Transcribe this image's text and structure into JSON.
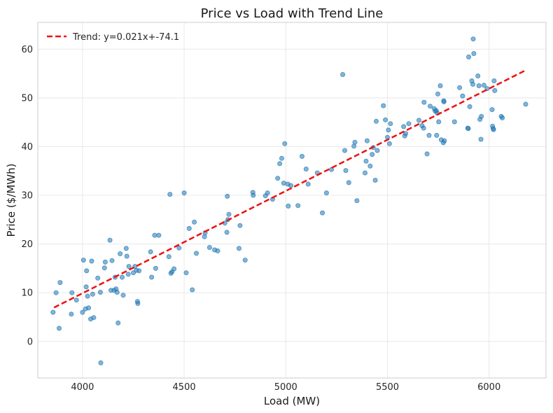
{
  "chart_data": {
    "type": "scatter",
    "title": "Price vs Load with Trend Line",
    "xlabel": "Load (MW)",
    "ylabel": "Price ($/MWh)",
    "xlim": [
      3780,
      6280
    ],
    "ylim": [
      -7.5,
      65.5
    ],
    "xticks": [
      4000,
      4500,
      5000,
      5500,
      6000
    ],
    "yticks": [
      0,
      10,
      20,
      30,
      40,
      50,
      60
    ],
    "grid": true,
    "legend_position": "top-left",
    "colors": {
      "points": "#1f77b4",
      "trend": "#ee1111",
      "grid": "#e8e8e8",
      "frame": "#cccccc"
    },
    "trend": {
      "label": "Trend: y=0.021x+-74.1",
      "slope": 0.021,
      "intercept": -74.1,
      "x_range": [
        3860,
        6180
      ]
    },
    "series": [
      {
        "values": [
          [
            3855,
            6.0
          ],
          [
            3870,
            10.0
          ],
          [
            3885,
            2.7
          ],
          [
            3890,
            12.1
          ],
          [
            3945,
            5.6
          ],
          [
            3948,
            10.0
          ],
          [
            3970,
            8.5
          ],
          [
            4000,
            6.0
          ],
          [
            4005,
            16.7
          ],
          [
            4015,
            6.7
          ],
          [
            4018,
            11.2
          ],
          [
            4020,
            14.5
          ],
          [
            4025,
            9.3
          ],
          [
            4030,
            6.9
          ],
          [
            4040,
            4.6
          ],
          [
            4045,
            16.5
          ],
          [
            4050,
            9.7
          ],
          [
            4055,
            4.9
          ],
          [
            4075,
            13.0
          ],
          [
            4088,
            10.1
          ],
          [
            4090,
            -4.4
          ],
          [
            4108,
            15.1
          ],
          [
            4112,
            16.3
          ],
          [
            4135,
            20.8
          ],
          [
            4140,
            10.5
          ],
          [
            4145,
            16.6
          ],
          [
            4155,
            10.5
          ],
          [
            4160,
            13.2
          ],
          [
            4165,
            10.8
          ],
          [
            4170,
            10.1
          ],
          [
            4175,
            3.8
          ],
          [
            4185,
            18.0
          ],
          [
            4195,
            13.2
          ],
          [
            4200,
            9.5
          ],
          [
            4215,
            19.1
          ],
          [
            4218,
            17.5
          ],
          [
            4225,
            13.8
          ],
          [
            4228,
            15.4
          ],
          [
            4250,
            14.1
          ],
          [
            4258,
            15.4
          ],
          [
            4265,
            14.6
          ],
          [
            4270,
            8.2
          ],
          [
            4272,
            7.8
          ],
          [
            4278,
            14.5
          ],
          [
            4335,
            18.4
          ],
          [
            4340,
            13.2
          ],
          [
            4355,
            21.8
          ],
          [
            4360,
            15.0
          ],
          [
            4375,
            21.8
          ],
          [
            4425,
            17.4
          ],
          [
            4430,
            30.2
          ],
          [
            4435,
            14.0
          ],
          [
            4440,
            14.3
          ],
          [
            4450,
            14.9
          ],
          [
            4475,
            19.2
          ],
          [
            4500,
            30.5
          ],
          [
            4510,
            14.1
          ],
          [
            4525,
            23.2
          ],
          [
            4540,
            10.6
          ],
          [
            4550,
            24.5
          ],
          [
            4560,
            18.1
          ],
          [
            4600,
            21.5
          ],
          [
            4603,
            22.3
          ],
          [
            4625,
            19.3
          ],
          [
            4650,
            18.8
          ],
          [
            4665,
            18.6
          ],
          [
            4700,
            24.3
          ],
          [
            4710,
            22.4
          ],
          [
            4712,
            29.8
          ],
          [
            4715,
            25.0
          ],
          [
            4720,
            26.1
          ],
          [
            4770,
            19.1
          ],
          [
            4775,
            23.8
          ],
          [
            4800,
            16.7
          ],
          [
            4838,
            30.6
          ],
          [
            4840,
            30.0
          ],
          [
            4900,
            29.9
          ],
          [
            4910,
            30.5
          ],
          [
            4935,
            29.2
          ],
          [
            4960,
            33.5
          ],
          [
            4970,
            36.5
          ],
          [
            4980,
            37.6
          ],
          [
            4990,
            32.5
          ],
          [
            4995,
            40.6
          ],
          [
            5010,
            32.3
          ],
          [
            5012,
            27.8
          ],
          [
            5025,
            32.0
          ],
          [
            5060,
            27.9
          ],
          [
            5080,
            38.0
          ],
          [
            5100,
            35.4
          ],
          [
            5110,
            32.3
          ],
          [
            5155,
            34.6
          ],
          [
            5180,
            26.4
          ],
          [
            5200,
            30.5
          ],
          [
            5225,
            35.3
          ],
          [
            5280,
            54.8
          ],
          [
            5290,
            39.2
          ],
          [
            5295,
            35.1
          ],
          [
            5310,
            32.6
          ],
          [
            5335,
            40.1
          ],
          [
            5340,
            40.9
          ],
          [
            5350,
            28.9
          ],
          [
            5390,
            34.6
          ],
          [
            5395,
            37.0
          ],
          [
            5400,
            41.2
          ],
          [
            5415,
            36.0
          ],
          [
            5425,
            38.4
          ],
          [
            5430,
            39.8
          ],
          [
            5440,
            33.1
          ],
          [
            5445,
            45.2
          ],
          [
            5450,
            39.2
          ],
          [
            5480,
            48.4
          ],
          [
            5490,
            45.5
          ],
          [
            5500,
            41.9
          ],
          [
            5505,
            43.4
          ],
          [
            5510,
            40.6
          ],
          [
            5515,
            44.7
          ],
          [
            5580,
            44.1
          ],
          [
            5585,
            42.2
          ],
          [
            5590,
            42.7
          ],
          [
            5605,
            44.7
          ],
          [
            5655,
            45.4
          ],
          [
            5670,
            44.3
          ],
          [
            5678,
            43.8
          ],
          [
            5680,
            49.1
          ],
          [
            5695,
            38.5
          ],
          [
            5705,
            42.3
          ],
          [
            5710,
            48.3
          ],
          [
            5730,
            47.8
          ],
          [
            5735,
            47.3
          ],
          [
            5740,
            47.4
          ],
          [
            5742,
            42.3
          ],
          [
            5745,
            46.9
          ],
          [
            5748,
            50.8
          ],
          [
            5752,
            45.1
          ],
          [
            5760,
            52.5
          ],
          [
            5765,
            41.4
          ],
          [
            5775,
            40.8
          ],
          [
            5777,
            49.4
          ],
          [
            5778,
            49.2
          ],
          [
            5780,
            41.2
          ],
          [
            5830,
            45.1
          ],
          [
            5855,
            52.1
          ],
          [
            5870,
            50.4
          ],
          [
            5895,
            43.8
          ],
          [
            5898,
            43.7
          ],
          [
            5900,
            58.4
          ],
          [
            5905,
            48.2
          ],
          [
            5915,
            53.5
          ],
          [
            5920,
            52.8
          ],
          [
            5922,
            62.1
          ],
          [
            5925,
            59.1
          ],
          [
            5945,
            54.5
          ],
          [
            5950,
            52.5
          ],
          [
            5955,
            45.6
          ],
          [
            5960,
            41.5
          ],
          [
            5962,
            46.2
          ],
          [
            5975,
            52.6
          ],
          [
            5990,
            51.9
          ],
          [
            6015,
            47.6
          ],
          [
            6017,
            44.2
          ],
          [
            6020,
            43.7
          ],
          [
            6022,
            43.5
          ],
          [
            6025,
            53.5
          ],
          [
            6028,
            51.5
          ],
          [
            6060,
            46.2
          ],
          [
            6065,
            45.9
          ],
          [
            6180,
            48.7
          ]
        ]
      }
    ]
  }
}
